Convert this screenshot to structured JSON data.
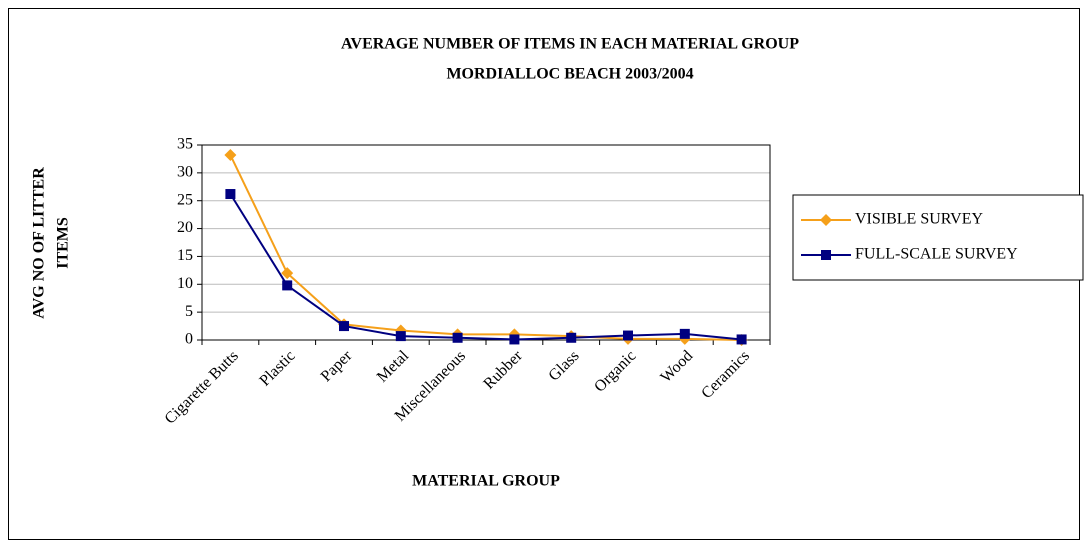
{
  "chart_data": {
    "type": "line",
    "title": "AVERAGE NUMBER OF ITEMS  IN EACH MATERIAL GROUP",
    "subtitle": "MORDIALLOC BEACH 2003/2004",
    "x_label": "MATERIAL GROUP",
    "y_label": [
      "AVG NO OF LITTER",
      "ITEMS"
    ],
    "categories": [
      "Cigarette Butts",
      "Plastic",
      "Paper",
      "Metal",
      "Miscellaneous",
      "Rubber",
      "Glass",
      "Organic",
      "Wood",
      "Ceramics"
    ],
    "series": [
      {
        "name": "VISIBLE SURVEY",
        "color": "#f5a01a",
        "marker": "diamond",
        "values": [
          33.2,
          12,
          2.8,
          1.7,
          1.0,
          1.0,
          0.7,
          0.2,
          0.2,
          0
        ]
      },
      {
        "name": "FULL-SCALE SURVEY",
        "color": "#000080",
        "marker": "square",
        "values": [
          26.2,
          9.8,
          2.5,
          0.7,
          0.4,
          0.1,
          0.4,
          0.8,
          1.1,
          0.1
        ]
      }
    ],
    "ylim": [
      0,
      35
    ],
    "yticks": [
      0,
      5,
      10,
      15,
      20,
      25,
      30,
      35
    ],
    "grid": true,
    "legend": "right"
  }
}
